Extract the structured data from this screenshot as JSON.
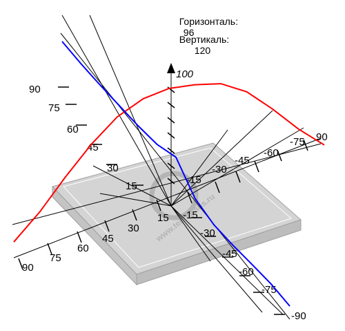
{
  "readouts": {
    "horizontal_label": "Горизонталь:",
    "horizontal_value": "96",
    "vertical_label": "Вертикаль:",
    "vertical_value": "120"
  },
  "watermark": "www.tehnorabs.ru",
  "colors": {
    "horizontal_curve": "#ff0000",
    "vertical_curve": "#0000ff",
    "axes": "#000000",
    "plate": "#dcdcdc"
  },
  "chart_data": {
    "type": "polar-3d",
    "horizontal_axis_ticks": [
      "90",
      "75",
      "60",
      "45",
      "30",
      "15",
      "-15",
      "-30",
      "-45",
      "-60",
      "-75",
      "90"
    ],
    "vertical_axis_ticks": [
      "90",
      "75",
      "60",
      "45",
      "30",
      "15",
      "-15",
      "-30",
      "-45",
      "-60",
      "-75",
      "-90"
    ],
    "depth_axis_ticks": [
      "15",
      "30",
      "45",
      "60",
      "75",
      "90"
    ],
    "intensity_axis_label": "100",
    "series": [
      {
        "key": "horizontal",
        "angles": [
          -90,
          -75,
          -60,
          -45,
          -30,
          -15,
          0,
          15,
          30,
          45,
          60,
          75,
          90
        ],
        "values": [
          12,
          30,
          52,
          72,
          88,
          97,
          100,
          98,
          94,
          83,
          65,
          45,
          28
        ]
      },
      {
        "key": "vertical",
        "angles": [
          -90,
          -75,
          -60,
          -45,
          -30,
          -15,
          0,
          15,
          30,
          45,
          60,
          75,
          90
        ],
        "values": [
          25,
          30,
          38,
          48,
          58,
          72,
          100,
          60,
          55,
          65,
          78,
          90,
          95
        ]
      }
    ]
  }
}
